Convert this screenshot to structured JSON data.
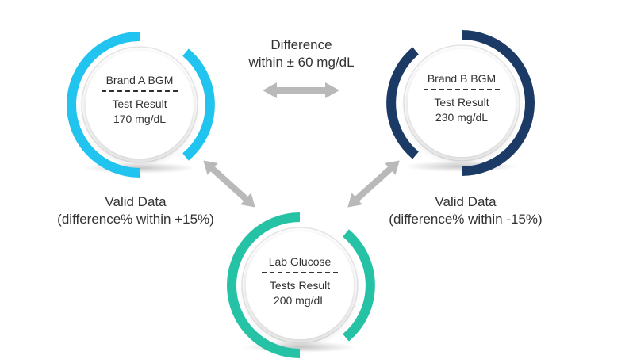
{
  "nodes": {
    "brand_a": {
      "title": "Brand A BGM",
      "result_label": "Test Result",
      "result_value": "170 mg/dL",
      "ring_color": "#20c4ee"
    },
    "brand_b": {
      "title": "Brand B BGM",
      "result_label": "Test Result",
      "result_value": "230 mg/dL",
      "ring_color": "#1b3a66"
    },
    "lab": {
      "title": "Lab Glucose",
      "result_label": "Tests Result",
      "result_value": "200 mg/dL",
      "ring_color": "#25c2a6"
    }
  },
  "labels": {
    "difference_line1": "Difference",
    "difference_line2": "within ± 60 mg/dL",
    "valid_left_line1": "Valid Data",
    "valid_left_line2": "(difference% within +15%)",
    "valid_right_line1": "Valid Data",
    "valid_right_line2": "(difference% within -15%)"
  },
  "arrow_color": "#b9b9b9"
}
